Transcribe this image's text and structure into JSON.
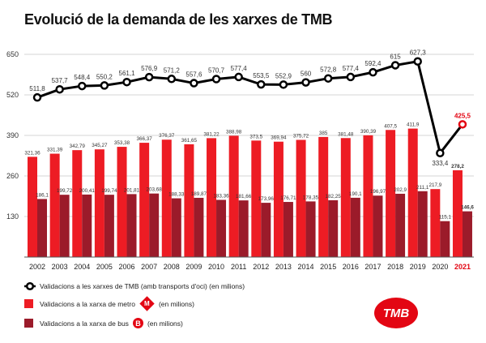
{
  "chart_data": {
    "type": "bar+line",
    "title": "Evolució de la demanda de les xarxes de TMB",
    "categories": [
      "2002",
      "2003",
      "2004",
      "2005",
      "2006",
      "2007",
      "2008",
      "2009",
      "2010",
      "2011",
      "2012",
      "2013",
      "2014",
      "2015",
      "2016",
      "2017",
      "2018",
      "2019",
      "2020",
      "2021"
    ],
    "ylim": [
      0,
      650
    ],
    "yticks": [
      "650",
      "520",
      "390",
      "260",
      "130"
    ],
    "ytick_values": [
      650,
      520,
      390,
      260,
      130
    ],
    "grid": true,
    "highlight_category": "2021",
    "series": [
      {
        "name": "Validacions a les xarxes de TMB (amb transports d'oci) (en milions)",
        "type": "line",
        "values": [
          511.8,
          537.7,
          548.4,
          550.2,
          561.1,
          576.9,
          571.2,
          557.6,
          570.7,
          577.4,
          553.5,
          552.9,
          560,
          572.8,
          577.4,
          592.4,
          615,
          627.3,
          333.4,
          425.5
        ],
        "labels": [
          "511,8",
          "537,7",
          "548,4",
          "550,2",
          "561,1",
          "576,9",
          "571,2",
          "557,6",
          "570,7",
          "577,4",
          "553,5",
          "552,9",
          "560",
          "572,8",
          "577,4",
          "592,4",
          "615",
          "627,3",
          "333,4",
          "425,5"
        ],
        "color": "#000000"
      },
      {
        "name": "Validacions a la xarxa de metro",
        "suffix": "(en milions)",
        "type": "bar",
        "values": [
          321.36,
          331.39,
          342.79,
          345.27,
          353.38,
          366.37,
          376.37,
          361.65,
          381.22,
          388.98,
          373.5,
          369.94,
          375.72,
          385,
          381.48,
          390.39,
          407.5,
          411.9,
          217.9,
          278.2
        ],
        "labels": [
          "321,36",
          "331,39",
          "342,79",
          "345,27",
          "353,38",
          "366,37",
          "376,37",
          "361,65",
          "381,22",
          "388,98",
          "373,5",
          "369,94",
          "375,72",
          "385",
          "381,48",
          "390,39",
          "407,5",
          "411,9",
          "217,9",
          "278,2"
        ],
        "color": "#ed1c24"
      },
      {
        "name": "Validacions a la xarxa de bus",
        "suffix": "(en milions)",
        "type": "bar",
        "values": [
          186.1,
          199.72,
          200.41,
          199.74,
          201.81,
          203.68,
          188.33,
          189.87,
          183.36,
          181.66,
          173.96,
          176.71,
          178.35,
          182.25,
          190.1,
          196.97,
          202.9,
          211.1,
          115.1,
          146.6
        ],
        "labels": [
          "186,1",
          "199,72",
          "200,41",
          "199,74",
          "201,81",
          "203,68",
          "188,33",
          "189,87",
          "183,36",
          "181,66",
          "173,96",
          "176,71",
          "178,35",
          "182,25",
          "190,1",
          "196,97",
          "202,9",
          "211,1",
          "115,1",
          "146,6"
        ],
        "color": "#9b1b2a"
      }
    ],
    "highlight_color": "#e30613",
    "legend_placement": "bottom-left"
  },
  "badges": {
    "metro": "M",
    "bus": "B"
  },
  "logo": "TMB"
}
